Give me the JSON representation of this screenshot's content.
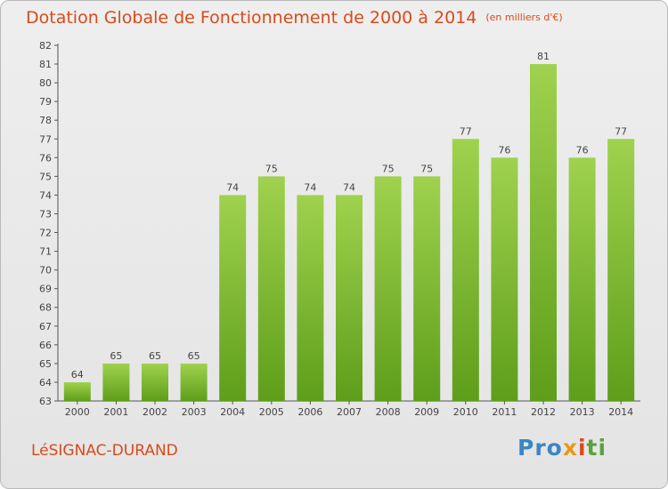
{
  "chart_data": {
    "type": "bar",
    "title": "Dotation Globale de Fonctionnement de 2000 à 2014",
    "unit_note": "(en milliers d'€)",
    "categories": [
      "2000",
      "2001",
      "2002",
      "2003",
      "2004",
      "2005",
      "2006",
      "2007",
      "2008",
      "2009",
      "2010",
      "2011",
      "2012",
      "2013",
      "2014"
    ],
    "values": [
      64,
      65,
      65,
      65,
      74,
      75,
      74,
      74,
      75,
      75,
      77,
      76,
      81,
      76,
      77
    ],
    "ylim": [
      63,
      82
    ],
    "yticks": [
      63,
      64,
      65,
      66,
      67,
      68,
      69,
      70,
      71,
      72,
      73,
      74,
      75,
      76,
      77,
      78,
      79,
      80,
      81,
      82
    ],
    "grid": false,
    "bar_color": "#7fbf2f"
  },
  "footer": {
    "place": "LéSIGNAC-DURAND",
    "logo_parts": [
      "Pro",
      "x",
      "i",
      "ti"
    ]
  }
}
